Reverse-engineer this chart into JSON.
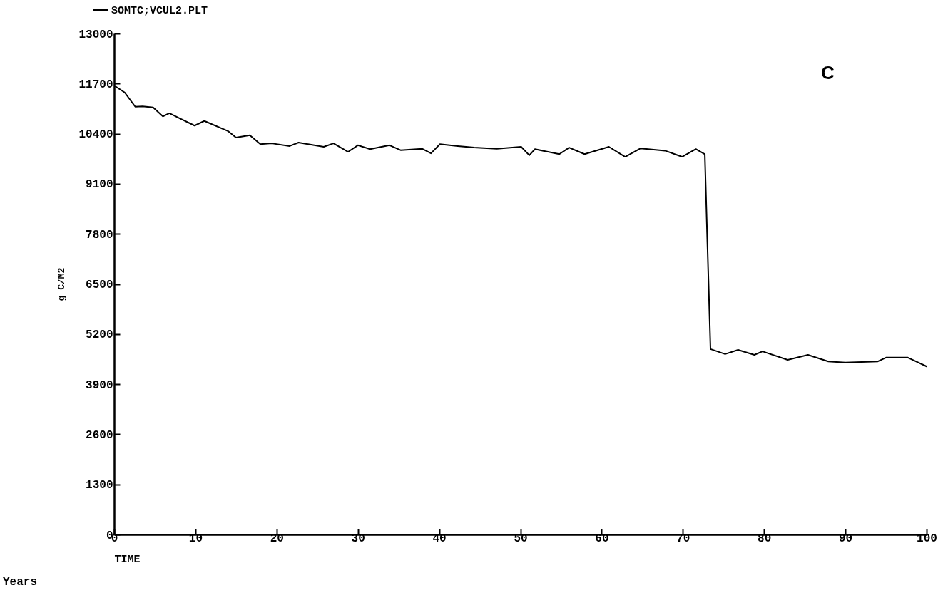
{
  "chart_data": {
    "type": "line",
    "xlabel": "TIME",
    "ylabel": "g C/M2",
    "annotations": [
      "C",
      "Years"
    ],
    "xlim": [
      0,
      100
    ],
    "xticks": [
      0,
      10,
      20,
      30,
      40,
      50,
      60,
      70,
      80,
      90,
      100
    ],
    "ylim": [
      0,
      13000
    ],
    "yticks": [
      0,
      1300,
      2600,
      3900,
      5200,
      6500,
      7800,
      9100,
      10400,
      11700,
      13000
    ],
    "grid": false,
    "legend": "top left",
    "marker": "none",
    "line_style": "solid",
    "series": [
      {
        "name": "SOMTC;VCUL2.PLT",
        "color": "#000000",
        "x": [
          0,
          1.3,
          2.6,
          3.5,
          4.8,
          6.0,
          6.8,
          9.9,
          11.1,
          14.0,
          15.0,
          16.7,
          18.0,
          19.4,
          21.6,
          22.7,
          25.8,
          27.0,
          28.8,
          30.0,
          31.5,
          33.9,
          35.3,
          37.9,
          39.0,
          40.1,
          42.3,
          44.3,
          47.1,
          50.1,
          51.1,
          51.8,
          54.8,
          56.0,
          57.9,
          60.9,
          62.9,
          64.8,
          67.8,
          69.9,
          71.6,
          72.7,
          73.4,
          75.2,
          76.8,
          78.8,
          79.8,
          82.9,
          85.4,
          87.9,
          90.0,
          94.0,
          95.0,
          97.7,
          100
        ],
        "values": [
          11650,
          11470,
          11100,
          11110,
          11080,
          10850,
          10930,
          10610,
          10730,
          10470,
          10300,
          10360,
          10130,
          10150,
          10080,
          10170,
          10060,
          10150,
          9930,
          10100,
          10000,
          10100,
          9970,
          10010,
          9890,
          10130,
          10080,
          10040,
          10010,
          10060,
          9840,
          10000,
          9870,
          10040,
          9870,
          10060,
          9800,
          10020,
          9960,
          9800,
          10000,
          9870,
          4810,
          4680,
          4790,
          4660,
          4750,
          4530,
          4660,
          4490,
          4460,
          4490,
          4590,
          4590,
          4360
        ]
      }
    ]
  }
}
